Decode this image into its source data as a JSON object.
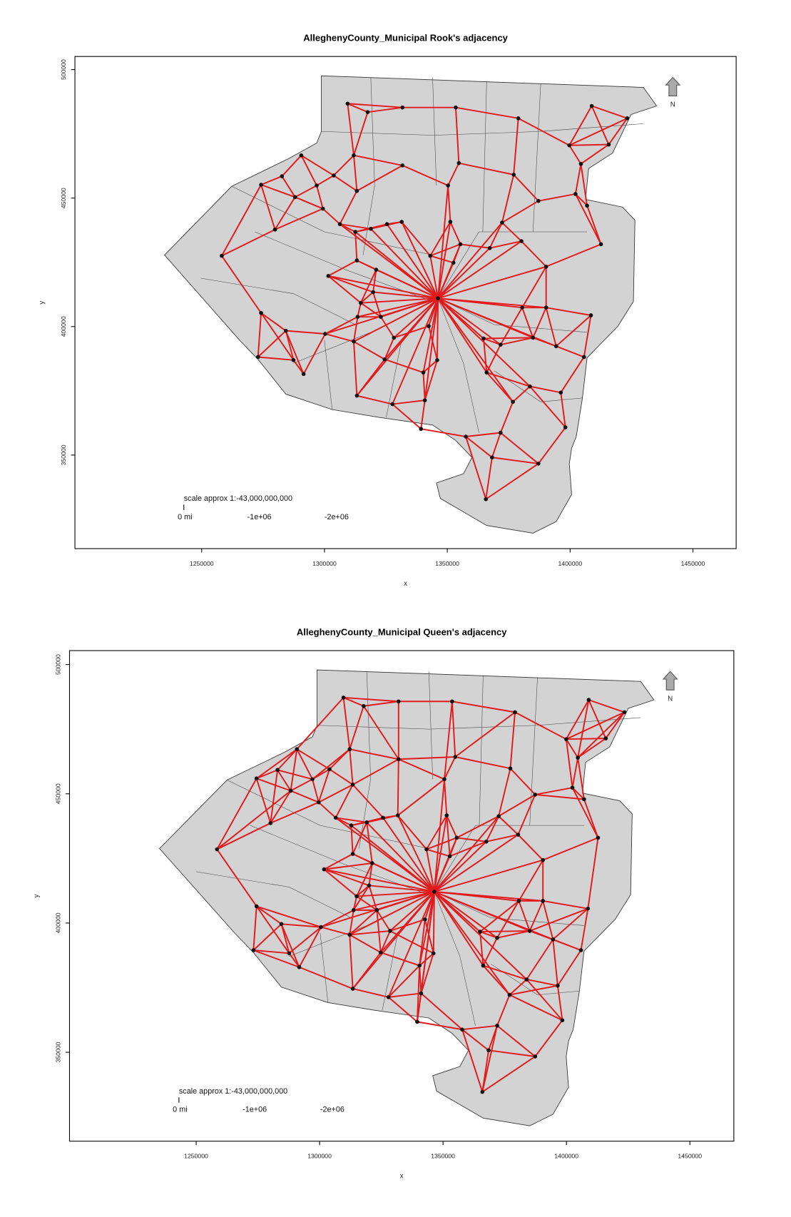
{
  "maps": [
    {
      "title": "AlleghenyCounty_Municipal Rook's adjacency",
      "xlabel": "x",
      "ylabel": "y",
      "xlim": [
        1198400,
        1467600
      ],
      "ylim": [
        313600,
        505100
      ],
      "xticks": [
        1250000,
        1300000,
        1350000,
        1400000,
        1450000
      ],
      "yticks": [
        350000,
        400000,
        450000,
        500000
      ],
      "scale_label": "scale approx 1:-43,000,000,000",
      "scale_ticks": [
        "0 mi",
        "-1e+06",
        "-2e+06"
      ],
      "north_label": "N"
    },
    {
      "title": "AlleghenyCounty_Municipal Queen's adjacency",
      "xlabel": "x",
      "ylabel": "y",
      "xlim": [
        1198700,
        1467800
      ],
      "ylim": [
        315600,
        505400
      ],
      "xticks": [
        1250000,
        1300000,
        1350000,
        1400000,
        1450000
      ],
      "yticks": [
        350000,
        400000,
        450000,
        500000
      ],
      "scale_label": "scale approx 1:-43,000,000,000",
      "scale_ticks": [
        "0 mi",
        "-1e+06",
        "-2e+06"
      ],
      "north_label": "N"
    }
  ]
}
